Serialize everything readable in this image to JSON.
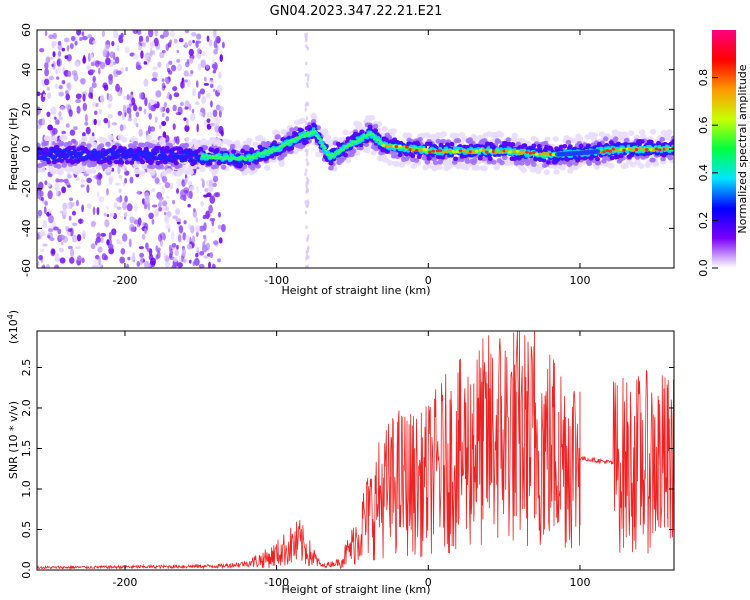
{
  "title": "GN04.2023.347.22.21.E21",
  "chart_data": [
    {
      "type": "heatmap",
      "xlabel": "Height of straight line (km)",
      "ylabel": "Frequency (Hz)",
      "xlim": [
        -258,
        162
      ],
      "ylim": [
        -60,
        60
      ],
      "x_ticks": [
        -200,
        -100,
        0,
        100
      ],
      "y_ticks": [
        -60,
        -40,
        -20,
        0,
        20,
        40,
        60
      ],
      "x_tick_labels": [
        "-200",
        "-100",
        "0",
        "100"
      ],
      "y_tick_labels": [
        "-60",
        "-40",
        "-20",
        "0",
        "20",
        "40",
        "60"
      ],
      "ridge_center": [
        {
          "x": -258,
          "y": -3
        },
        {
          "x": -200,
          "y": -3
        },
        {
          "x": -140,
          "y": -4
        },
        {
          "x": -120,
          "y": -5
        },
        {
          "x": -100,
          "y": 0
        },
        {
          "x": -85,
          "y": 6
        },
        {
          "x": -75,
          "y": 9
        },
        {
          "x": -65,
          "y": -4
        },
        {
          "x": -50,
          "y": 3
        },
        {
          "x": -38,
          "y": 8
        },
        {
          "x": -30,
          "y": 2
        },
        {
          "x": 0,
          "y": -1
        },
        {
          "x": 50,
          "y": -1
        },
        {
          "x": 80,
          "y": -3
        },
        {
          "x": 100,
          "y": -2
        },
        {
          "x": 130,
          "y": 0
        },
        {
          "x": 162,
          "y": 0
        }
      ],
      "colorbar": {
        "label": "Normalized spectral amplitude",
        "range": [
          0,
          1
        ],
        "ticks": [
          0.0,
          0.2,
          0.4,
          0.6,
          0.8
        ],
        "tick_labels": [
          "0.0",
          "0.2",
          "0.4",
          "0.6",
          "0.8"
        ],
        "colors": [
          "#ffffff",
          "#7a00ff",
          "#0000ff",
          "#00e5ff",
          "#00ff40",
          "#c8ff00",
          "#ff9900",
          "#ff0000",
          "#ff0080"
        ]
      }
    },
    {
      "type": "line",
      "xlabel": "Height of straight line (km)",
      "ylabel": "SNR (10 * v/v)",
      "yscale_label": "(x10",
      "yscale_exponent": "4",
      "yscale_close": ")",
      "xlim": [
        -258,
        162
      ],
      "ylim": [
        0,
        2.95
      ],
      "x_ticks": [
        -200,
        -100,
        0,
        100
      ],
      "y_ticks": [
        0.0,
        0.5,
        1.0,
        1.5,
        2.0,
        2.5
      ],
      "x_tick_labels": [
        "-200",
        "-100",
        "0",
        "100"
      ],
      "y_tick_labels": [
        "0.0",
        "0.5",
        "1.0",
        "1.5",
        "2.0",
        "2.5"
      ],
      "color": "#ee2222",
      "envelope": [
        {
          "x": -258,
          "y": 0.03
        },
        {
          "x": -180,
          "y": 0.04
        },
        {
          "x": -135,
          "y": 0.05
        },
        {
          "x": -120,
          "y": 0.08
        },
        {
          "x": -105,
          "y": 0.15
        },
        {
          "x": -95,
          "y": 0.25
        },
        {
          "x": -85,
          "y": 0.35
        },
        {
          "x": -78,
          "y": 0.2
        },
        {
          "x": -70,
          "y": 0.05
        },
        {
          "x": -58,
          "y": 0.1
        },
        {
          "x": -50,
          "y": 0.3
        },
        {
          "x": -42,
          "y": 0.6
        },
        {
          "x": -30,
          "y": 0.95
        },
        {
          "x": -20,
          "y": 1.1
        },
        {
          "x": -5,
          "y": 1.05
        },
        {
          "x": 10,
          "y": 1.3
        },
        {
          "x": 30,
          "y": 1.5
        },
        {
          "x": 50,
          "y": 1.7
        },
        {
          "x": 70,
          "y": 1.6
        },
        {
          "x": 90,
          "y": 1.45
        },
        {
          "x": 100,
          "y": 1.38
        },
        {
          "x": 112,
          "y": 1.35
        },
        {
          "x": 130,
          "y": 1.3
        },
        {
          "x": 150,
          "y": 1.35
        },
        {
          "x": 162,
          "y": 1.3
        }
      ],
      "spikes": [
        {
          "x": 70,
          "y": 2.95
        },
        {
          "x": 36,
          "y": 2.7
        },
        {
          "x": 30,
          "y": 2.3
        },
        {
          "x": 58,
          "y": 2.2
        },
        {
          "x": 100,
          "y": 2.2
        },
        {
          "x": 158,
          "y": 2.25
        },
        {
          "x": 152,
          "y": 2.1
        },
        {
          "x": 20,
          "y": 1.85
        },
        {
          "x": -25,
          "y": 1.15
        },
        {
          "x": -87,
          "y": 0.42
        },
        {
          "x": 136,
          "y": 1.9
        },
        {
          "x": 86,
          "y": 1.95
        }
      ]
    }
  ]
}
